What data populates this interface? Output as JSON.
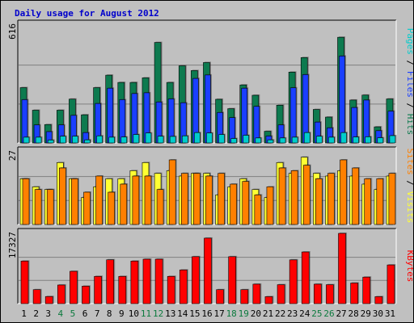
{
  "title": "Daily usage for August 2012",
  "colors": {
    "pages": "#1a3fff",
    "files": "#1a3fff",
    "hits": "#0d7a4f",
    "sites": "#ff8000",
    "visits": "#ffff33",
    "kbytes": "#ff0000",
    "weekend_label": "#0b7a3d",
    "weekday_label": "#000000",
    "title": "#0000cc"
  },
  "chart_data": {
    "type": "bar",
    "title": "Daily usage for August 2012",
    "days": [
      "1",
      "2",
      "3",
      "4",
      "5",
      "6",
      "7",
      "8",
      "9",
      "10",
      "11",
      "12",
      "13",
      "14",
      "15",
      "16",
      "17",
      "18",
      "19",
      "20",
      "21",
      "22",
      "23",
      "24",
      "25",
      "26",
      "27",
      "28",
      "29",
      "30",
      "31"
    ],
    "weekend_days": [
      "4",
      "5",
      "11",
      "12",
      "18",
      "19",
      "25",
      "26"
    ],
    "panels": [
      {
        "name": "hits-files-pages",
        "ymax_label": "616",
        "ymax": 616,
        "side_label_parts": [
          {
            "text": "Pages",
            "color": "#00cccc"
          },
          {
            "text": " / ",
            "color": "#000000"
          },
          {
            "text": "Files",
            "color": "#1a3fff"
          },
          {
            "text": " / ",
            "color": "#000000"
          },
          {
            "text": "Hits",
            "color": "#0d7a4f"
          }
        ],
        "series": [
          {
            "name": "Hits",
            "color": "#0d7a4f",
            "values": [
              289,
              171,
              96,
              171,
              229,
              147,
              289,
              354,
              316,
              316,
              340,
              525,
              316,
              403,
              378,
              420,
              228,
              179,
              303,
              249,
              61,
              197,
              370,
              446,
              175,
              135,
              552,
              224,
              250,
              84,
              230
            ]
          },
          {
            "name": "Files",
            "color": "#1a3fff",
            "values": [
              226,
              94,
              59,
              94,
              144,
              54,
              206,
              286,
              226,
              258,
              262,
              214,
              230,
              210,
              337,
              355,
              159,
              132,
              286,
              191,
              36,
              94,
              288,
              357,
              109,
              79,
              454,
              185,
              224,
              64,
              166
            ]
          },
          {
            "name": "Pages",
            "color": "#00cccc",
            "values": [
              30,
              30,
              15,
              35,
              35,
              16,
              37,
              30,
              31,
              44,
              52,
              35,
              34,
              37,
              54,
              52,
              44,
              23,
              40,
              26,
              16,
              26,
              30,
              54,
              35,
              30,
              54,
              31,
              32,
              27,
              38
            ]
          }
        ]
      },
      {
        "name": "visits-sites",
        "ymax_label": "27",
        "ymax": 27,
        "side_label_parts": [
          {
            "text": "Sites",
            "color": "#ff8000"
          },
          {
            "text": " / ",
            "color": "#000000"
          },
          {
            "text": "Visits",
            "color": "#ffff33"
          }
        ],
        "series": [
          {
            "name": "Visits",
            "color": "#ffff33",
            "values": [
              17,
              14,
              13,
              23,
              17,
              10,
              14,
              17,
              17,
              20,
              23,
              19,
              20,
              18,
              19,
              19,
              11,
              14,
              17,
              13,
              10,
              23,
              19,
              25,
              19,
              18,
              20,
              18,
              15,
              13,
              18
            ]
          },
          {
            "name": "Sites",
            "color": "#ff8000",
            "values": [
              17,
              13,
              13,
              21,
              17,
              12,
              18,
              12,
              15,
              18,
              18,
              13,
              24,
              19,
              19,
              18,
              19,
              15,
              16,
              11,
              14,
              21,
              20,
              22,
              17,
              19,
              24,
              21,
              17,
              17,
              19
            ]
          }
        ]
      },
      {
        "name": "kbytes",
        "ymax_label": "17327",
        "ymax": 17327,
        "side_label_parts": [
          {
            "text": "KBytes",
            "color": "#ff0000"
          }
        ],
        "series": [
          {
            "name": "KBytes",
            "color": "#ff0000",
            "values": [
              10500,
              3440,
              1750,
              4590,
              7970,
              4310,
              6720,
              10810,
              6720,
              10500,
              10960,
              10960,
              6720,
              8310,
              11580,
              16150,
              3440,
              11580,
              3440,
              4800,
              1720,
              4670,
              10790,
              12740,
              4800,
              4670,
              17327,
              5080,
              6540,
              1720,
              9540
            ]
          }
        ]
      }
    ]
  }
}
